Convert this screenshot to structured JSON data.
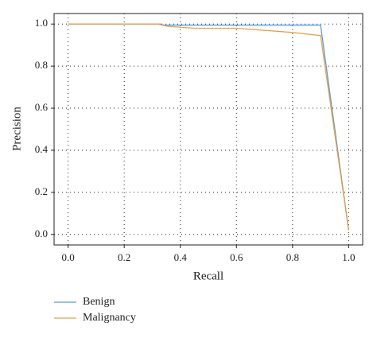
{
  "chart_data": {
    "type": "line",
    "x_label": "Recall",
    "y_label": "Precision",
    "xlim": [
      -0.05,
      1.05
    ],
    "ylim": [
      -0.05,
      1.05
    ],
    "xticks": [
      {
        "value": 0,
        "label": "0.0"
      },
      0.2,
      0.4,
      0.6,
      0.8,
      {
        "value": 1,
        "label": "1.0"
      }
    ],
    "yticks": [
      {
        "value": 0,
        "label": "0.0"
      },
      0.2,
      0.4,
      0.6,
      0.8,
      {
        "value": 1,
        "label": "1.0"
      }
    ],
    "grid": true,
    "series": [
      {
        "name": "Benign",
        "color": "#5b9bd5",
        "x": [
          0,
          0.33,
          0.34,
          0.9,
          0.905,
          1.0
        ],
        "values": [
          1.0,
          1.0,
          0.995,
          0.995,
          0.945,
          0.02
        ]
      },
      {
        "name": "Malignancy",
        "color": "#e8a04a",
        "x": [
          0,
          0.32,
          0.35,
          0.45,
          0.6,
          0.8,
          0.9,
          1.0
        ],
        "values": [
          1.0,
          1.0,
          0.99,
          0.98,
          0.98,
          0.96,
          0.945,
          0.02
        ]
      }
    ]
  }
}
